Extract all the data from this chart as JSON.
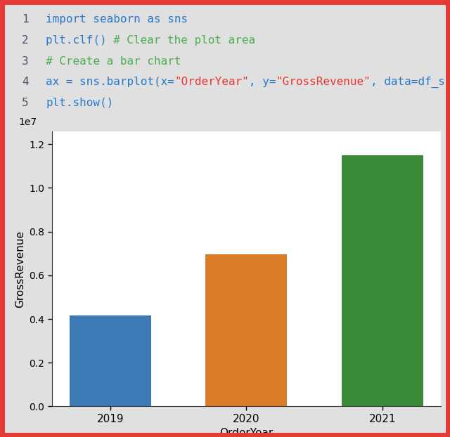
{
  "code_lines": [
    {
      "num": "1",
      "parts": [
        {
          "text": "import seaborn as sns",
          "color": "#2979cc"
        }
      ]
    },
    {
      "num": "2",
      "parts": [
        {
          "text": "plt.clf() ",
          "color": "#2979cc"
        },
        {
          "text": "# Clear the plot area",
          "color": "#4caf50"
        }
      ]
    },
    {
      "num": "3",
      "parts": [
        {
          "text": "# Create a bar chart",
          "color": "#4caf50"
        }
      ]
    },
    {
      "num": "4",
      "parts": [
        {
          "text": "ax = sns.barplot(x=",
          "color": "#2979cc"
        },
        {
          "text": "\"OrderYear\"",
          "color": "#e53935"
        },
        {
          "text": ", y=",
          "color": "#2979cc"
        },
        {
          "text": "\"GrossRevenue\"",
          "color": "#e53935"
        },
        {
          "text": ", data=df_sales)",
          "color": "#2979cc"
        }
      ]
    },
    {
      "num": "5",
      "parts": [
        {
          "text": "plt.show()",
          "color": "#2979cc"
        }
      ]
    }
  ],
  "num_color": "#4a5568",
  "code_bg": "#eaeaea",
  "outer_bg": "#e0e0e0",
  "border_color": "#e53935",
  "border_width": 5,
  "categories": [
    "2019",
    "2020",
    "2021"
  ],
  "values": [
    4150000,
    6950000,
    11500000
  ],
  "bar_colors": [
    "#3d7ab5",
    "#d97c27",
    "#3a8a3a"
  ],
  "xlabel": "OrderYear",
  "ylabel": "GrossRevenue",
  "ylim": [
    0,
    12600000.0
  ],
  "yticks": [
    0,
    2000000,
    4000000,
    6000000,
    8000000,
    10000000,
    12000000
  ],
  "ytick_labels": [
    "0.0",
    "0.2",
    "0.4",
    "0.6",
    "0.8",
    "1.0",
    "1.2"
  ],
  "sci_notation": "1e7",
  "plot_bg": "#ffffff",
  "code_fontsize": 11.5,
  "axis_fontsize": 11,
  "tick_fontsize": 10
}
